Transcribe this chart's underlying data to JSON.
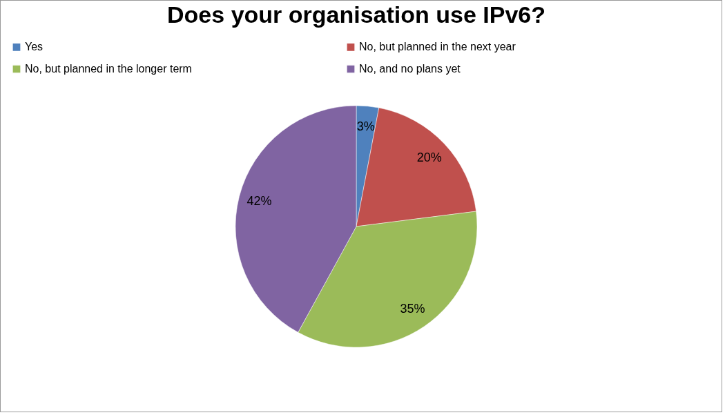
{
  "chart_data": {
    "type": "pie",
    "title": "Does your organisation use IPv6?",
    "categories": [
      "Yes",
      "No, but planned in the next year",
      "No, but planned in the longer term",
      "No, and no plans yet"
    ],
    "values": [
      3,
      20,
      35,
      42
    ],
    "colors": [
      "#4f81bd",
      "#c0504d",
      "#9bbb59",
      "#8064a2"
    ],
    "value_labels": [
      "3%",
      "20%",
      "35%",
      "42%"
    ],
    "legend": "top"
  }
}
